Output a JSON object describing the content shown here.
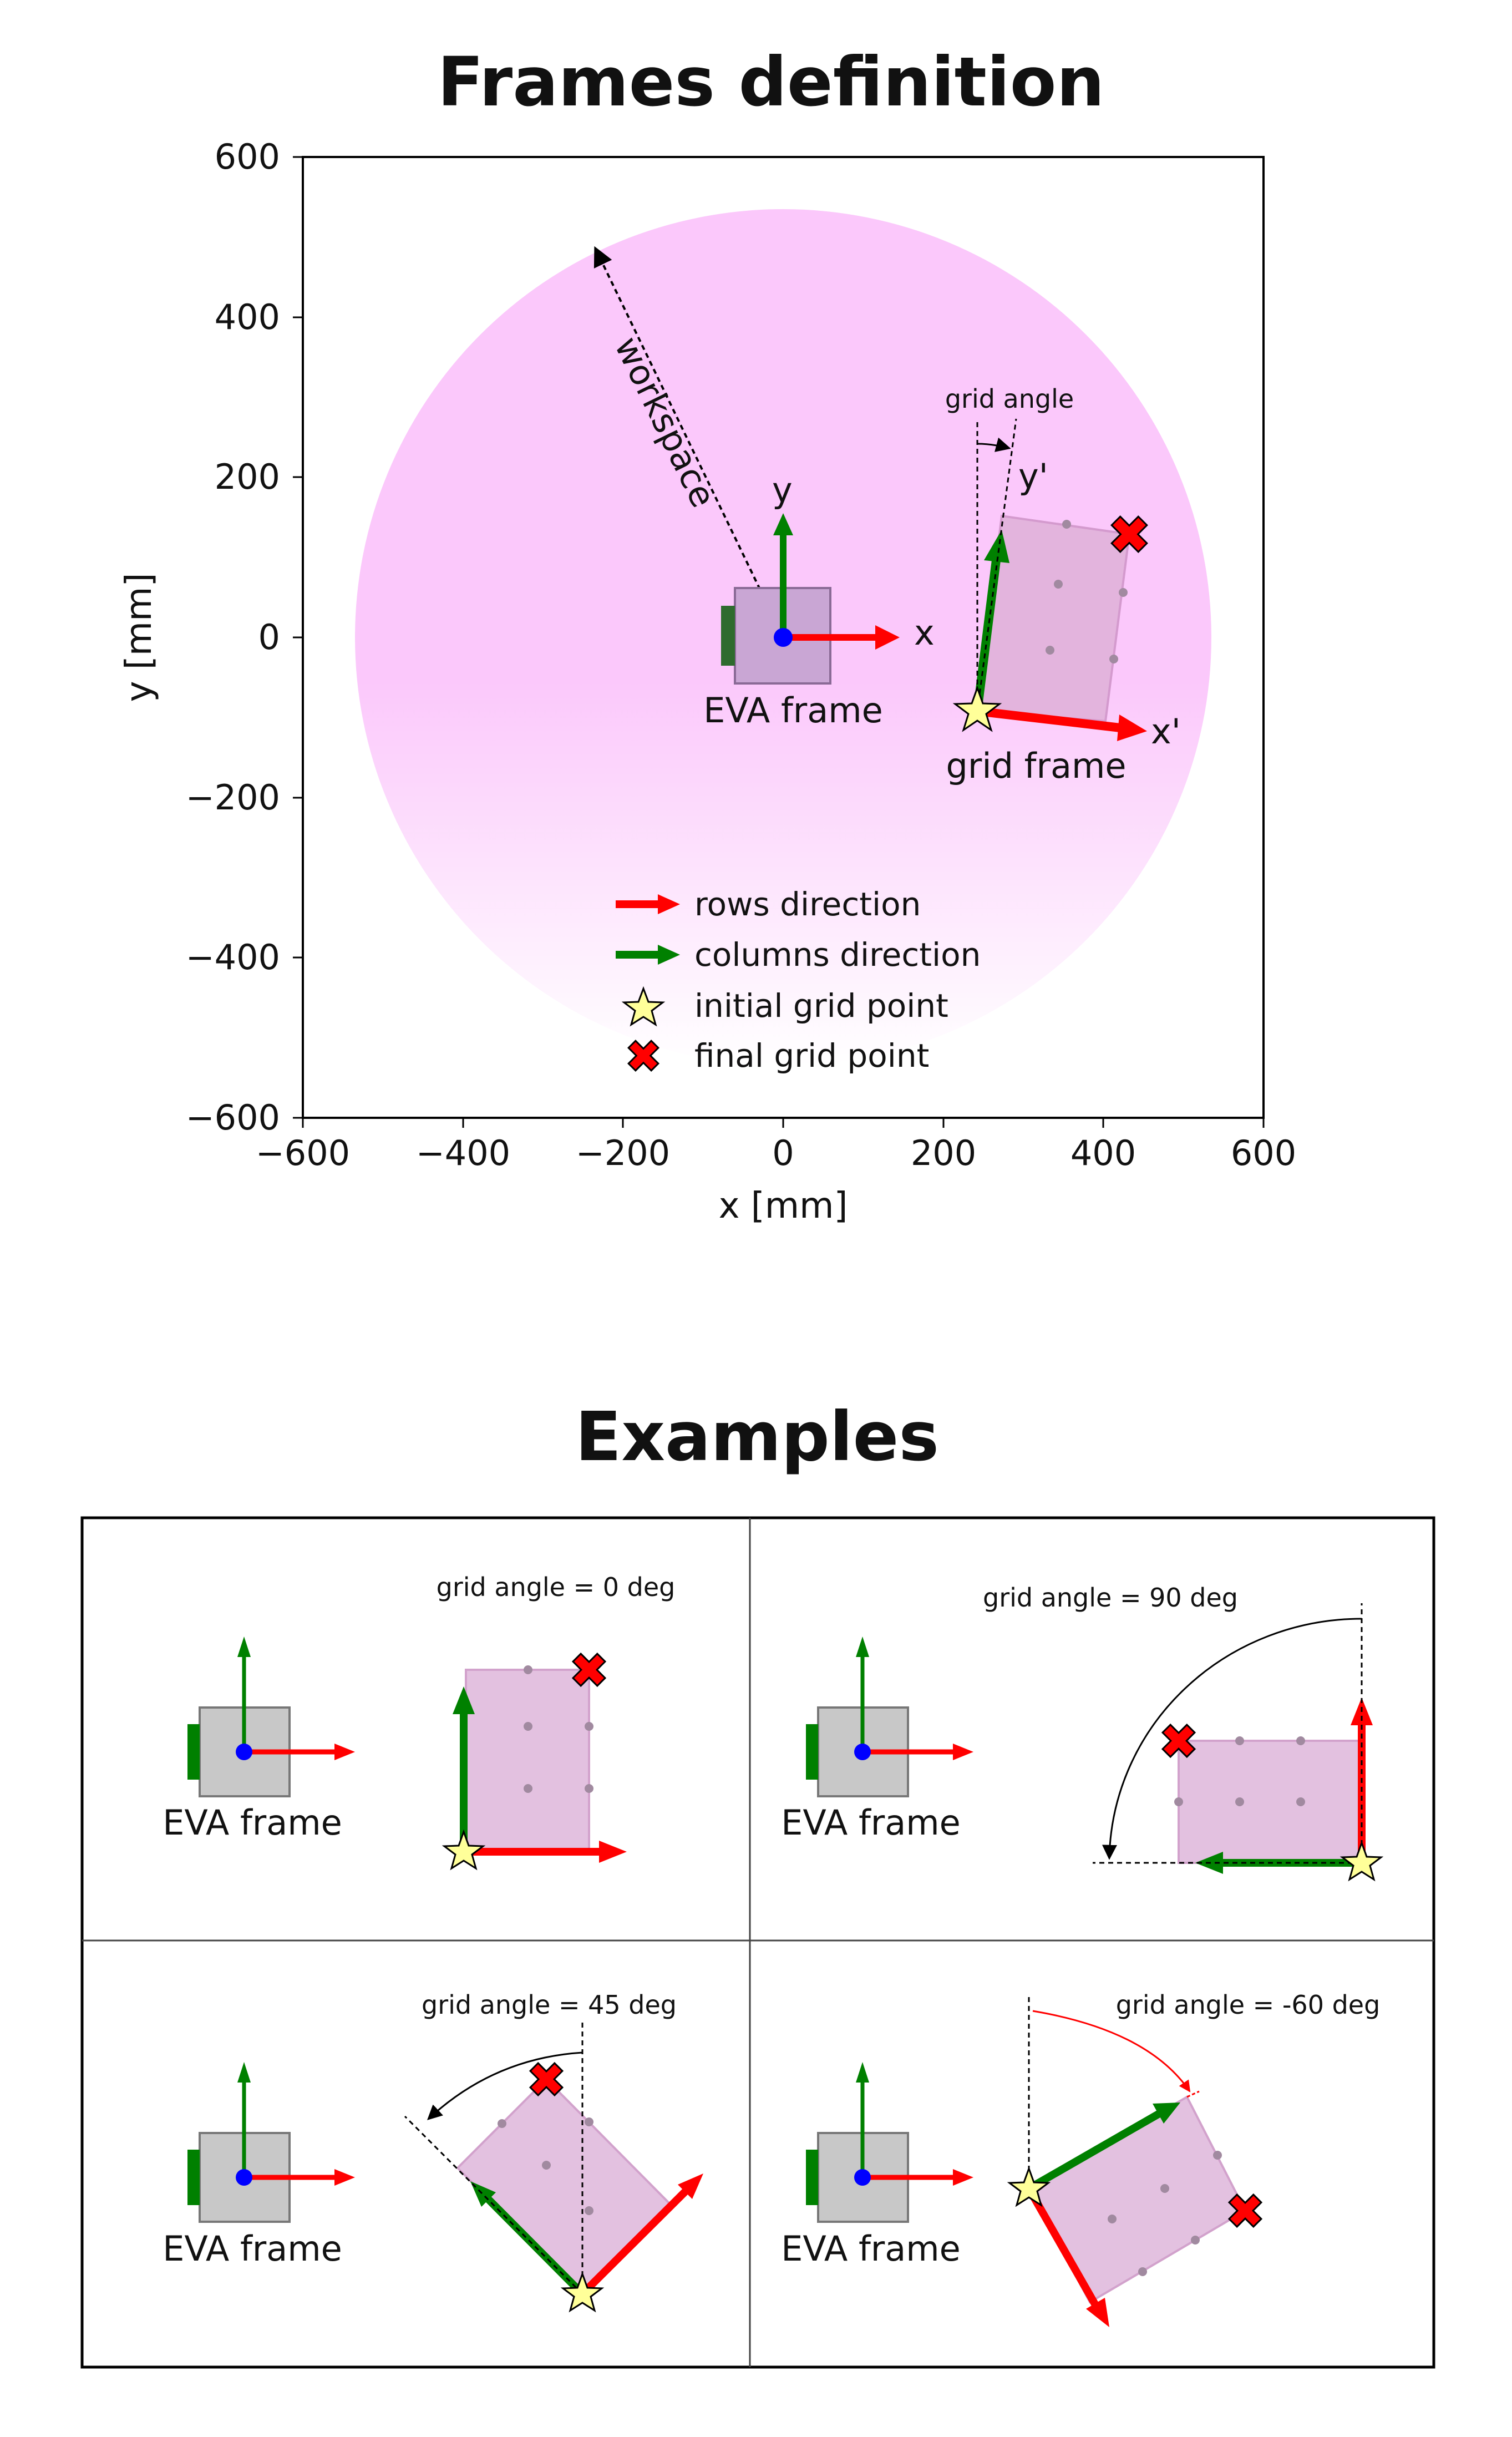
{
  "top_title": "Frames definition",
  "bottom_title": "Examples",
  "top_plot": {
    "x_label": "x [mm]",
    "y_label": "y [mm]",
    "x_ticks": [
      "−600",
      "−400",
      "−200",
      "0",
      "200",
      "400",
      "600"
    ],
    "y_ticks": [
      "600",
      "400",
      "200",
      "0",
      "−200",
      "−400",
      "−600"
    ],
    "workspace_label": "workspace",
    "eva_x_label": "x",
    "eva_y_label": "y",
    "eva_frame_label": "EVA frame",
    "grid_angle_label": "grid angle",
    "grid_x_label": "x'",
    "grid_y_label": "y'",
    "grid_frame_label": "grid frame",
    "legend": [
      {
        "label": "rows direction",
        "marker": "red-arrow",
        "color": "#ff0000"
      },
      {
        "label": "columns direction",
        "marker": "green-arrow",
        "color": "#008000"
      },
      {
        "label": "initial grid point",
        "marker": "yellow-star",
        "color": "#ffff99"
      },
      {
        "label": "final grid point",
        "marker": "red-cross",
        "color": "#ff0000"
      }
    ]
  },
  "examples": [
    {
      "angle_label": "grid angle = 0 deg",
      "eva_label": "EVA frame"
    },
    {
      "angle_label": "grid angle = 90 deg",
      "eva_label": "EVA frame"
    },
    {
      "angle_label": "grid angle = 45 deg",
      "eva_label": "EVA frame"
    },
    {
      "angle_label": "grid angle = -60 deg",
      "eva_label": "EVA frame"
    }
  ],
  "colors": {
    "workspace": "#fbc8fb",
    "eva_body": "#c8c8c8",
    "eva_body_top": "#c9a6d4",
    "grid": "#e3b4dd",
    "rows": "#ff0000",
    "columns": "#008000",
    "origin": "#0000ff",
    "star": "#ffff99"
  }
}
